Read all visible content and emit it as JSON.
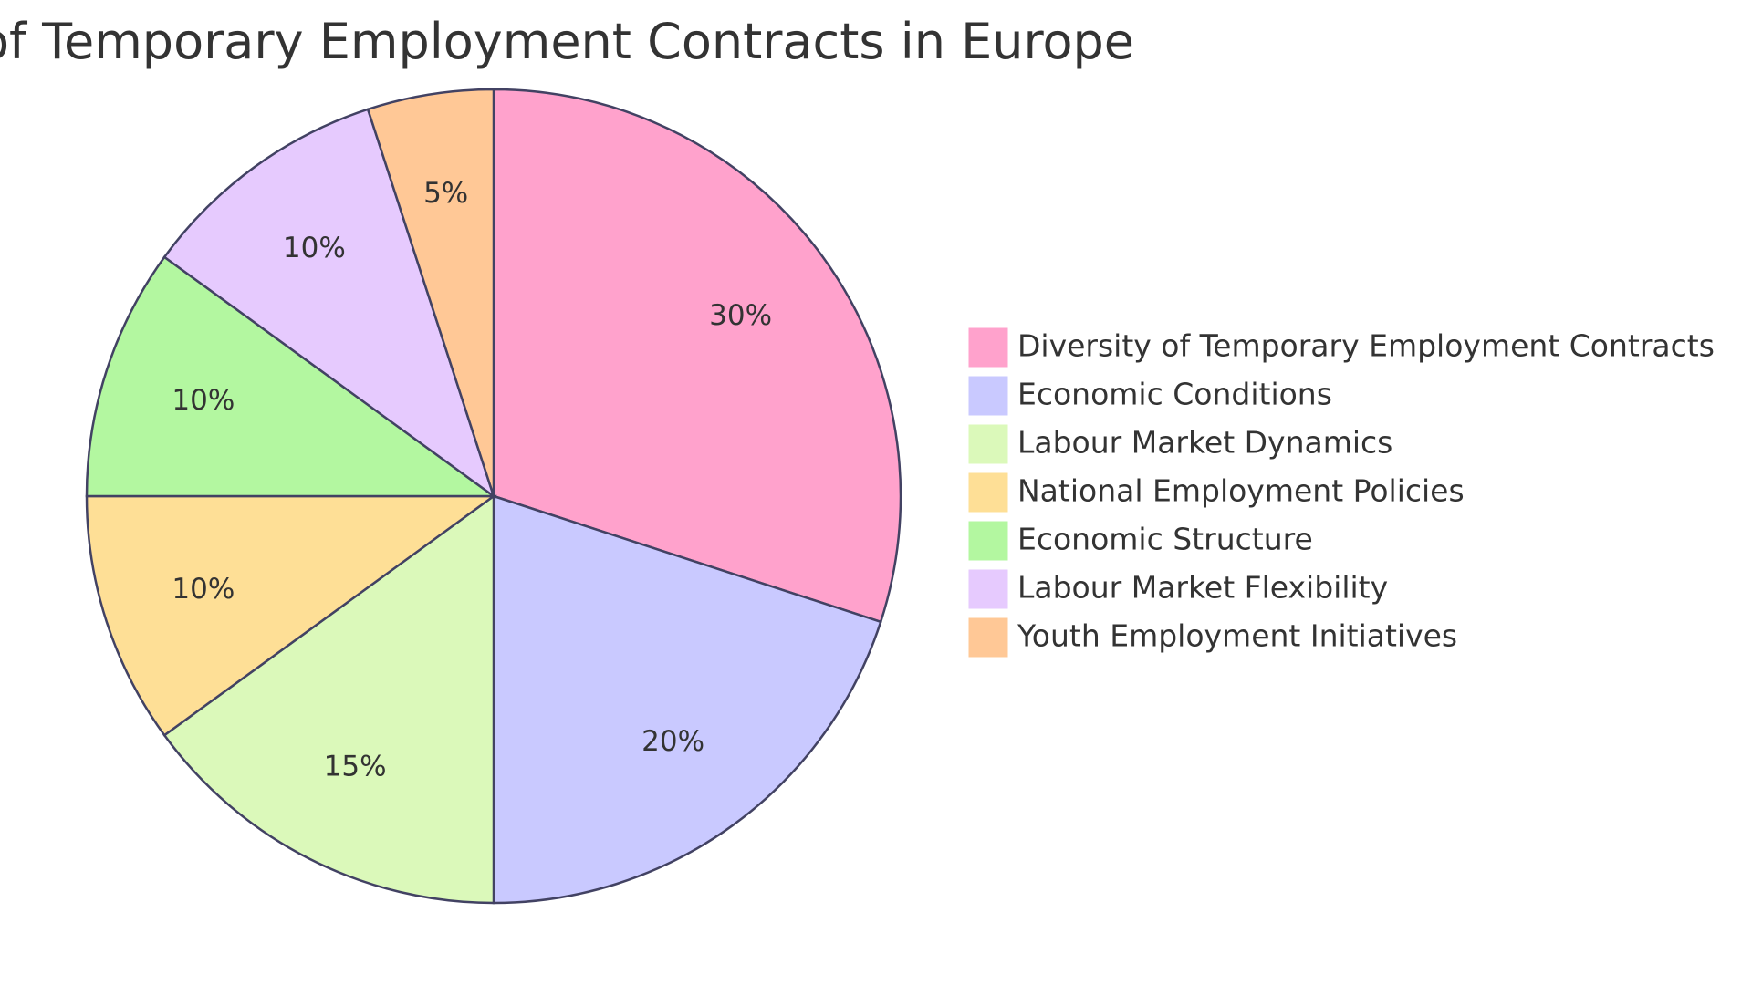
{
  "chart_data": {
    "type": "pie",
    "title": "Influence of Temporary Employment Contracts in Europe",
    "slices": [
      {
        "label": "Diversity of Temporary Employment Contracts",
        "value": 30,
        "display": "30%",
        "color": "#ffa2cc"
      },
      {
        "label": "Economic Conditions",
        "value": 20,
        "display": "20%",
        "color": "#c9c9ff"
      },
      {
        "label": "Labour Market Dynamics",
        "value": 15,
        "display": "15%",
        "color": "#dbf9ba"
      },
      {
        "label": "National Employment Policies",
        "value": 10,
        "display": "10%",
        "color": "#fedf96"
      },
      {
        "label": "Economic Structure",
        "value": 10,
        "display": "10%",
        "color": "#b3f7a0"
      },
      {
        "label": "Labour Market Flexibility",
        "value": 10,
        "display": "10%",
        "color": "#e6cafe"
      },
      {
        "label": "Youth Employment Initiatives",
        "value": 5,
        "display": "5%",
        "color": "#ffc896"
      }
    ],
    "stroke_color": "#424263",
    "legend_position": "right"
  }
}
